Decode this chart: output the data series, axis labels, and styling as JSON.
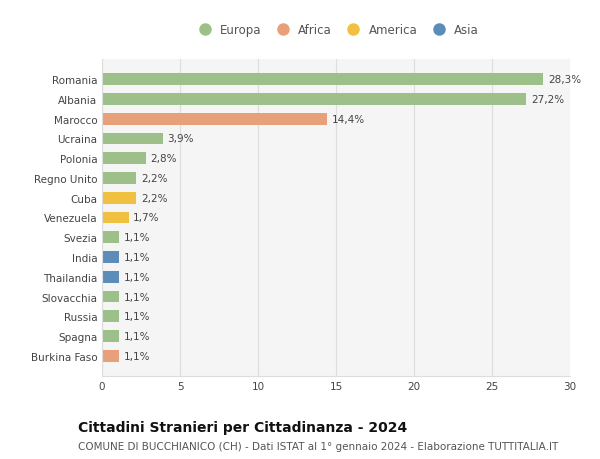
{
  "countries": [
    "Romania",
    "Albania",
    "Marocco",
    "Ucraina",
    "Polonia",
    "Regno Unito",
    "Cuba",
    "Venezuela",
    "Svezia",
    "India",
    "Thailandia",
    "Slovacchia",
    "Russia",
    "Spagna",
    "Burkina Faso"
  ],
  "values": [
    28.3,
    27.2,
    14.4,
    3.9,
    2.8,
    2.2,
    2.2,
    1.7,
    1.1,
    1.1,
    1.1,
    1.1,
    1.1,
    1.1,
    1.1
  ],
  "labels": [
    "28,3%",
    "27,2%",
    "14,4%",
    "3,9%",
    "2,8%",
    "2,2%",
    "2,2%",
    "1,7%",
    "1,1%",
    "1,1%",
    "1,1%",
    "1,1%",
    "1,1%",
    "1,1%",
    "1,1%"
  ],
  "continents": [
    "Europa",
    "Europa",
    "Africa",
    "Europa",
    "Europa",
    "Europa",
    "America",
    "America",
    "Europa",
    "Asia",
    "Asia",
    "Europa",
    "Europa",
    "Europa",
    "Africa"
  ],
  "continent_colors": {
    "Europa": "#9dc08b",
    "Africa": "#e8a07a",
    "America": "#f0c040",
    "Asia": "#5b8db8"
  },
  "legend_order": [
    "Europa",
    "Africa",
    "America",
    "Asia"
  ],
  "xlim": [
    0,
    30
  ],
  "xticks": [
    0,
    5,
    10,
    15,
    20,
    25,
    30
  ],
  "title": "Cittadini Stranieri per Cittadinanza - 2024",
  "subtitle": "COMUNE DI BUCCHIANICO (CH) - Dati ISTAT al 1° gennaio 2024 - Elaborazione TUTTITALIA.IT",
  "background_color": "#ffffff",
  "plot_bg_color": "#f5f5f5",
  "grid_color": "#dddddd",
  "bar_height": 0.6,
  "title_fontsize": 10,
  "subtitle_fontsize": 7.5,
  "label_fontsize": 7.5,
  "tick_fontsize": 7.5,
  "legend_fontsize": 8.5
}
